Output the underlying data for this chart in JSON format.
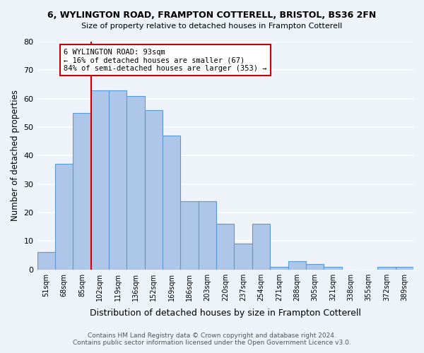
{
  "title": "6, WYLINGTON ROAD, FRAMPTON COTTERELL, BRISTOL, BS36 2FN",
  "subtitle": "Size of property relative to detached houses in Frampton Cotterell",
  "xlabel": "Distribution of detached houses by size in Frampton Cotterell",
  "ylabel": "Number of detached properties",
  "bin_labels": [
    "51sqm",
    "68sqm",
    "85sqm",
    "102sqm",
    "119sqm",
    "136sqm",
    "152sqm",
    "169sqm",
    "186sqm",
    "203sqm",
    "220sqm",
    "237sqm",
    "254sqm",
    "271sqm",
    "288sqm",
    "305sqm",
    "321sqm",
    "338sqm",
    "355sqm",
    "372sqm",
    "389sqm"
  ],
  "bar_values": [
    6,
    37,
    55,
    63,
    63,
    61,
    56,
    47,
    24,
    24,
    16,
    9,
    16,
    1,
    3,
    2,
    1,
    0,
    0,
    1,
    1
  ],
  "bar_color": "#aec6e8",
  "bar_edge_color": "#5b9bd5",
  "ref_line_x": 3.0,
  "reference_line_label": "6 WYLINGTON ROAD: 93sqm",
  "annotation_line1": "← 16% of detached houses are smaller (67)",
  "annotation_line2": "84% of semi-detached houses are larger (353) →",
  "annotation_border_color": "#cc0000",
  "ylim": [
    0,
    80
  ],
  "yticks": [
    0,
    10,
    20,
    30,
    40,
    50,
    60,
    70,
    80
  ],
  "footer_line1": "Contains HM Land Registry data © Crown copyright and database right 2024.",
  "footer_line2": "Contains public sector information licensed under the Open Government Licence v3.0.",
  "bg_color": "#eef2f9",
  "plot_bg_color": "#eef2f9",
  "grid_color": "#ffffff"
}
